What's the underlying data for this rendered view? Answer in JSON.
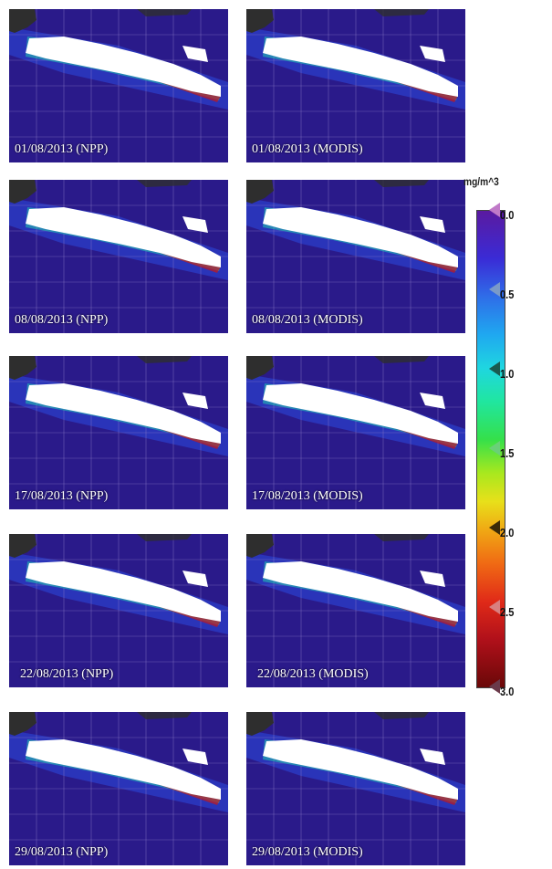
{
  "panels": [
    {
      "caption": "01/08/2013 (NPP)"
    },
    {
      "caption": "01/08/2013 (MODIS)"
    },
    {
      "caption": "08/08/2013 (NPP)"
    },
    {
      "caption": "08/08/2013 (MODIS)"
    },
    {
      "caption": "17/08/2013 (NPP)"
    },
    {
      "caption": "17/08/2013 (MODIS)"
    },
    {
      "caption": "22/08/2013 (NPP)"
    },
    {
      "caption": "22/08/2013 (MODIS)"
    },
    {
      "caption": "29/08/2013 (NPP)"
    },
    {
      "caption": "29/08/2013 (MODIS)"
    }
  ],
  "colorbar": {
    "unit": "mg/m^3",
    "ticks": [
      "0.0",
      "0.5",
      "1.0",
      "1.5",
      "2.0",
      "2.5",
      "3.0"
    ],
    "marker_colors": [
      "#c07ac8",
      "#7a9ac8",
      "#1a5a50",
      "#6ad078",
      "#3a2a08",
      "#d88080",
      "#6a3a4a"
    ]
  },
  "colors": {
    "ocean": "#2a1a8a",
    "land": "#ffffff",
    "no_data": "#2e2e2e",
    "grid": "#8a7ac8"
  }
}
